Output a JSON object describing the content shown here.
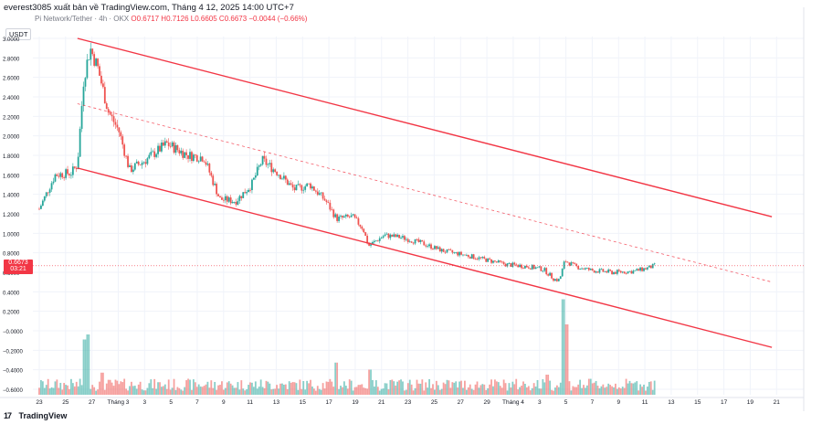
{
  "header": {
    "publisher_line": "everest3085 xuất bản về TradingView.com, Tháng 4 12, 2025 14:00 UTC+7"
  },
  "symbol": {
    "name": "Pi Network/Tether · 4h · OKX",
    "ohlc": "O0.6717  H0.7126  L0.6605  C0.6673  −0.0044 (−0.66%)"
  },
  "price_axis_unit": "USDT",
  "last_price": {
    "value": "0.6673",
    "countdown": "03:21",
    "color": "#f23645"
  },
  "footer": {
    "brand": "TradingView",
    "icon": "tradingview-logo-icon"
  },
  "colors": {
    "up": "#26a69a",
    "down": "#ef5350",
    "channel": "#f23645",
    "grid": "#f0f3fa"
  },
  "chart_data": {
    "type": "candlestick",
    "title": "Pi Network/Tether · 4h · OKX",
    "ylim": [
      -0.6,
      3.0
    ],
    "y_ticks": [
      "3.0000",
      "2.8000",
      "2.6000",
      "2.4000",
      "2.2000",
      "2.0000",
      "1.8000",
      "1.6000",
      "1.4000",
      "1.2000",
      "1.0000",
      "0.8000",
      "0.6000",
      "0.4000",
      "0.2000",
      "−0.0000",
      "−0.2000",
      "−0.4000",
      "−0.6000"
    ],
    "x_ticks": [
      "23",
      "25",
      "27",
      "Tháng 3",
      "3",
      "5",
      "7",
      "9",
      "11",
      "13",
      "15",
      "17",
      "19",
      "21",
      "23",
      "25",
      "27",
      "29",
      "Tháng 4",
      "3",
      "5",
      "7",
      "9",
      "11",
      "13",
      "15",
      "17",
      "19",
      "21"
    ],
    "grid": true,
    "price_path": [
      {
        "x": 23,
        "y": 1.25
      },
      {
        "x": 24.5,
        "y": 1.6
      },
      {
        "x": 26,
        "y": 1.62
      },
      {
        "x": 26.6,
        "y": 1.7
      },
      {
        "x": 27.2,
        "y": 2.6
      },
      {
        "x": 27.8,
        "y": 2.9
      },
      {
        "x": 28.5,
        "y": 2.7
      },
      {
        "x": 29.5,
        "y": 2.25
      },
      {
        "x": 30.5,
        "y": 2.05
      },
      {
        "x": 31.5,
        "y": 1.65
      },
      {
        "x": 33,
        "y": 1.75
      },
      {
        "x": 35,
        "y": 1.92
      },
      {
        "x": 37,
        "y": 1.8
      },
      {
        "x": 38.5,
        "y": 1.78
      },
      {
        "x": 40,
        "y": 1.35
      },
      {
        "x": 41.5,
        "y": 1.33
      },
      {
        "x": 43,
        "y": 1.5
      },
      {
        "x": 44,
        "y": 1.75
      },
      {
        "x": 45.5,
        "y": 1.62
      },
      {
        "x": 47,
        "y": 1.45
      },
      {
        "x": 48.5,
        "y": 1.5
      },
      {
        "x": 50,
        "y": 1.33
      },
      {
        "x": 51,
        "y": 1.15
      },
      {
        "x": 52.5,
        "y": 1.17
      },
      {
        "x": 53.5,
        "y": 1.05
      },
      {
        "x": 54,
        "y": 0.87
      },
      {
        "x": 55.5,
        "y": 0.98
      },
      {
        "x": 57,
        "y": 0.96
      },
      {
        "x": 59,
        "y": 0.9
      },
      {
        "x": 61,
        "y": 0.82
      },
      {
        "x": 63,
        "y": 0.78
      },
      {
        "x": 65,
        "y": 0.73
      },
      {
        "x": 67,
        "y": 0.68
      },
      {
        "x": 69,
        "y": 0.66
      },
      {
        "x": 70.5,
        "y": 0.63
      },
      {
        "x": 71.5,
        "y": 0.53
      },
      {
        "x": 72,
        "y": 0.52
      },
      {
        "x": 72.5,
        "y": 0.72
      },
      {
        "x": 73.5,
        "y": 0.66
      },
      {
        "x": 75,
        "y": 0.62
      },
      {
        "x": 77,
        "y": 0.6
      },
      {
        "x": 79,
        "y": 0.61
      },
      {
        "x": 80.5,
        "y": 0.65
      },
      {
        "x": 81,
        "y": 0.67
      }
    ],
    "volume_peaks": [
      {
        "x": 27.3,
        "v": 0.55
      },
      {
        "x": 27.6,
        "v": 0.6
      },
      {
        "x": 29,
        "v": 0.22
      },
      {
        "x": 51,
        "v": 0.32
      },
      {
        "x": 54.2,
        "v": 0.25
      },
      {
        "x": 72.3,
        "v": 0.95
      },
      {
        "x": 72.7,
        "v": 0.7
      },
      {
        "x": 70.8,
        "v": 0.2
      },
      {
        "x": 79.8,
        "v": 0.08
      },
      {
        "x": 81,
        "v": 0.14
      }
    ],
    "channel": {
      "upper": [
        {
          "x": 26.6,
          "y": 3.0
        },
        {
          "x": 92,
          "y": 1.17
        }
      ],
      "lower": [
        {
          "x": 26.6,
          "y": 1.67
        },
        {
          "x": 92,
          "y": -0.17
        }
      ],
      "midline": [
        {
          "x": 26.6,
          "y": 2.33
        },
        {
          "x": 92,
          "y": 0.5
        }
      ]
    },
    "last_value": 0.6673
  }
}
